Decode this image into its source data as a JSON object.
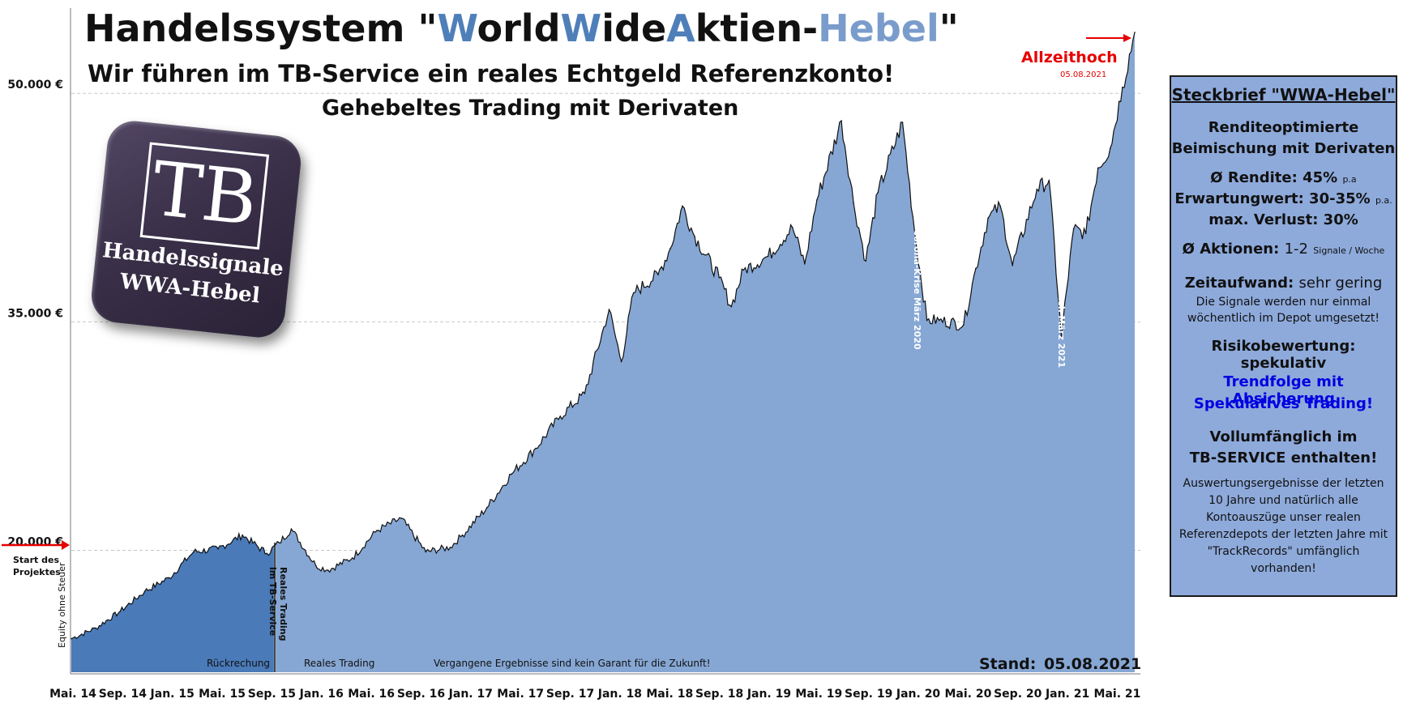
{
  "title": {
    "part1": "Handelssystem \"",
    "w1": "W",
    "p2": "orld",
    "w2": "W",
    "p3": "ide",
    "w3": "A",
    "p4": "ktien-",
    "hebel": "Hebel",
    "end": "\""
  },
  "subtitle1": "Wir führen im TB-Service ein reales Echtgeld Referenzkonto!",
  "subtitle2": "Gehebeltes Trading mit Derivaten",
  "logo": {
    "box_text": "TB",
    "line1": "Handelssignale",
    "line2": "WWA-Hebel"
  },
  "info_box": {
    "heading": "Steckbrief \"WWA-Hebel\"",
    "rendite_line1": "Renditeoptimierte",
    "rendite_line2": "Beimischung mit Derivaten",
    "rendite_label": "Ø Rendite: 45%",
    "rendite_unit": "p.a",
    "erwartung_label": "Erwartungwert: 30-35%",
    "erwartung_unit": "p.a.",
    "verlust": "max. Verlust: 30%",
    "aktionen_label": "Ø Aktionen:",
    "aktionen_value": "1-2",
    "aktionen_unit": "Signale / Woche",
    "zeit_label": "Zeitaufwand:",
    "zeit_value": "sehr gering",
    "zeit_note1": "Die Signale werden nur einmal",
    "zeit_note2": "wöchentlich im Depot umgesetzt!",
    "risiko": "Risikobewertung: spekulativ",
    "trend1": "Trendfolge mit Absicherung",
    "trend2": "Spekulatives Trading!",
    "voll1": "Vollumfänglich im",
    "voll2": "TB-SERVICE enthalten!",
    "notes": [
      "Auswertungsergebnisse der letzten",
      "10 Jahre und natürlich alle",
      "Kontoauszüge unser realen",
      "Referenzdepots der letzten Jahre mit",
      "\"TrackRecords\" umfänglich",
      "vorhanden!"
    ]
  },
  "colors": {
    "backtest_fill": "#4a7ab8",
    "real_fill": "#86a7d4",
    "line": "#111111",
    "arrow": "#e60000",
    "grid": "#c8c8c8",
    "accent": "#4f7fb9"
  },
  "chart_data": {
    "type": "area",
    "ylabel": "Equity ohne Steuer",
    "yticks": [
      20000,
      35000,
      50000
    ],
    "ytick_labels": [
      "20.000 €",
      "35.000 €",
      "50.000 €"
    ],
    "ylim": [
      12000,
      54000
    ],
    "x_tick_labels": [
      "Mai. 14",
      "Sep. 14",
      "Jan. 15",
      "Mai. 15",
      "Sep. 15",
      "Jan. 16",
      "Mai. 16",
      "Sep. 16",
      "Jan. 17",
      "Mai. 17",
      "Sep. 17",
      "Jan. 18",
      "Mai. 18",
      "Sep. 18",
      "Jan. 19",
      "Mai. 19",
      "Sep. 19",
      "Jan. 20",
      "Mai. 20",
      "Sep. 20",
      "Jan. 21",
      "Mai. 21"
    ],
    "x": [
      "2014-05",
      "2014-07",
      "2014-09",
      "2014-11",
      "2015-01",
      "2015-03",
      "2015-05",
      "2015-07",
      "2015-09",
      "2015-10",
      "2015-11",
      "2016-01",
      "2016-02",
      "2016-04",
      "2016-06",
      "2016-08",
      "2016-10",
      "2016-12",
      "2017-01",
      "2017-03",
      "2017-05",
      "2017-07",
      "2017-09",
      "2017-11",
      "2018-01",
      "2018-02",
      "2018-03",
      "2018-05",
      "2018-06",
      "2018-07",
      "2018-08",
      "2018-10",
      "2018-11",
      "2018-12",
      "2019-02",
      "2019-04",
      "2019-05",
      "2019-06",
      "2019-08",
      "2019-09",
      "2019-10",
      "2019-11",
      "2020-01",
      "2020-02",
      "2020-03",
      "2020-04",
      "2020-06",
      "2020-07",
      "2020-08",
      "2020-09",
      "2020-10",
      "2020-12",
      "2021-01",
      "2021-02",
      "2021-03",
      "2021-04",
      "2021-05",
      "2021-06",
      "2021-07",
      "2021-08"
    ],
    "values": [
      14200,
      14900,
      16000,
      17300,
      18200,
      19900,
      20100,
      21000,
      19800,
      20500,
      21400,
      19000,
      18700,
      19500,
      21300,
      22100,
      19900,
      20200,
      21000,
      22800,
      25000,
      26700,
      28800,
      30300,
      35800,
      32400,
      36900,
      38100,
      39800,
      42600,
      40600,
      37900,
      36000,
      38400,
      39300,
      41200,
      38800,
      43000,
      48200,
      42800,
      39000,
      43500,
      48100,
      40900,
      35100,
      35100,
      34800,
      38500,
      41800,
      42600,
      38700,
      43700,
      44300,
      34000,
      41100,
      40800,
      45100,
      46400,
      50400,
      54000
    ],
    "split_label_left": "Rückrechung",
    "split_label_right": "Reales Trading",
    "split_vertical_label": "Reales Trading im TB-Service",
    "disclaimer": "Vergangene Ergebnisse sind kein Garant für die Zukunft!",
    "stand_label": "Stand:",
    "stand_date": "05.08.2021",
    "annotations": {
      "ath": "Allzeithoch",
      "ath_date": "05.08.2021",
      "corona": "Corona-Krise März 2020",
      "tech": "Tech-Crash März 2021",
      "start": "Start des Projektes"
    },
    "grid": true
  }
}
